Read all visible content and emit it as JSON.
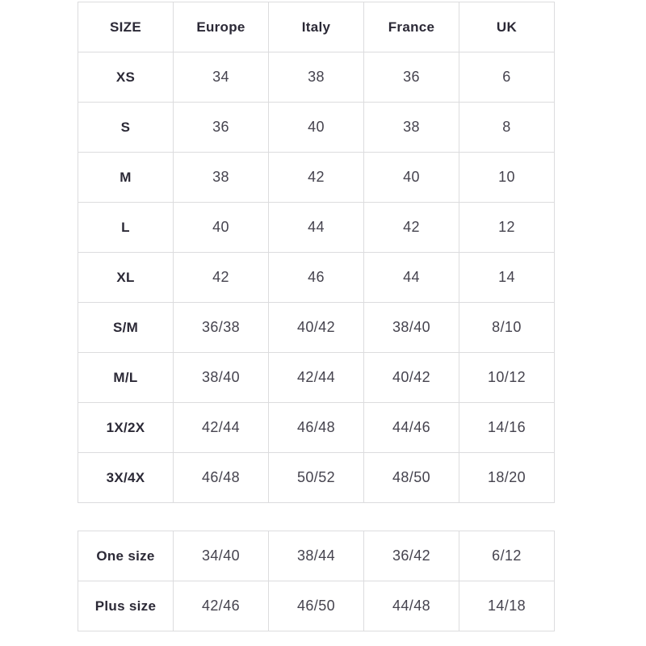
{
  "colors": {
    "background": "#ffffff",
    "border": "#dcdcde",
    "label_text": "#2b2936",
    "value_text": "#45434e"
  },
  "size_chart": {
    "columns": [
      "SIZE",
      "Europe",
      "Italy",
      "France",
      "UK"
    ],
    "rows": [
      {
        "label": "XS",
        "values": [
          "34",
          "38",
          "36",
          "6"
        ]
      },
      {
        "label": "S",
        "values": [
          "36",
          "40",
          "38",
          "8"
        ]
      },
      {
        "label": "M",
        "values": [
          "38",
          "42",
          "40",
          "10"
        ]
      },
      {
        "label": "L",
        "values": [
          "40",
          "44",
          "42",
          "12"
        ]
      },
      {
        "label": "XL",
        "values": [
          "42",
          "46",
          "44",
          "14"
        ]
      },
      {
        "label": "S/M",
        "values": [
          "36/38",
          "40/42",
          "38/40",
          "8/10"
        ]
      },
      {
        "label": "M/L",
        "values": [
          "38/40",
          "42/44",
          "40/42",
          "10/12"
        ]
      },
      {
        "label": "1X/2X",
        "values": [
          "42/44",
          "46/48",
          "44/46",
          "14/16"
        ]
      },
      {
        "label": "3X/4X",
        "values": [
          "46/48",
          "50/52",
          "48/50",
          "18/20"
        ]
      }
    ]
  },
  "special_sizes": {
    "rows": [
      {
        "label": "One size",
        "values": [
          "34/40",
          "38/44",
          "36/42",
          "6/12"
        ]
      },
      {
        "label": "Plus size",
        "values": [
          "42/46",
          "46/50",
          "44/48",
          "14/18"
        ]
      }
    ]
  }
}
